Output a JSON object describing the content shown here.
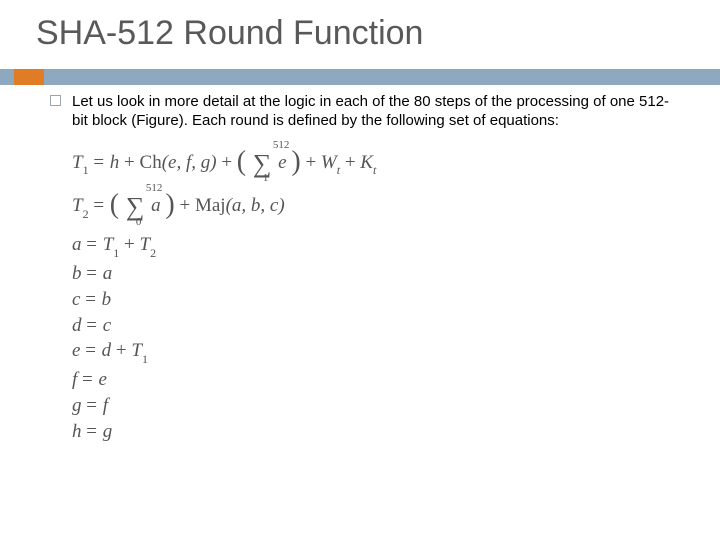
{
  "title": "SHA-512 Round Function",
  "paragraph": "Let us look in more detail at the logic in each of the 80 steps of the processing of one 512-bit block (Figure). Each round is defined by the following set of equations:",
  "colors": {
    "title_color": "#595959",
    "bar_gray": "#8ea8bf",
    "bar_orange": "#e07b26",
    "eq_color": "#555555",
    "background": "#ffffff"
  },
  "equations": {
    "t1": {
      "lhs": "T",
      "lhs_sub": "1",
      "rhs_parts": {
        "h": "h",
        "plus": "+",
        "ch": "Ch",
        "ch_args": "(e, f, g)",
        "sigma_sym": "∑",
        "sigma_lower": "1",
        "sigma_upper": "512",
        "sigma_arg": "e",
        "w": "W",
        "w_sub": "t",
        "k": "K",
        "k_sub": "t"
      }
    },
    "t2": {
      "lhs": "T",
      "lhs_sub": "2",
      "rhs_parts": {
        "sigma_sym": "∑",
        "sigma_lower": "0",
        "sigma_upper": "512",
        "sigma_arg": "a",
        "plus": "+",
        "maj": "Maj",
        "maj_args": "(a, b, c)"
      }
    },
    "simple": [
      {
        "lhs": "a",
        "rhs": "T₁ + T₂",
        "rhs_struct": {
          "a": "T",
          "as": "1",
          "op": "+",
          "b": "T",
          "bs": "2"
        }
      },
      {
        "lhs": "b",
        "rhs": "a"
      },
      {
        "lhs": "c",
        "rhs": "b"
      },
      {
        "lhs": "d",
        "rhs": "c"
      },
      {
        "lhs": "e",
        "rhs": "d + T₁",
        "rhs_struct": {
          "a": "d",
          "op": "+",
          "b": "T",
          "bs": "1"
        }
      },
      {
        "lhs": "f",
        "rhs": "e"
      },
      {
        "lhs": "g",
        "rhs": "f"
      },
      {
        "lhs": "h",
        "rhs": "g"
      }
    ]
  },
  "typography": {
    "title_fontsize": 34,
    "body_fontsize": 15,
    "eq_fontsize": 19,
    "eq_font": "Times New Roman"
  }
}
